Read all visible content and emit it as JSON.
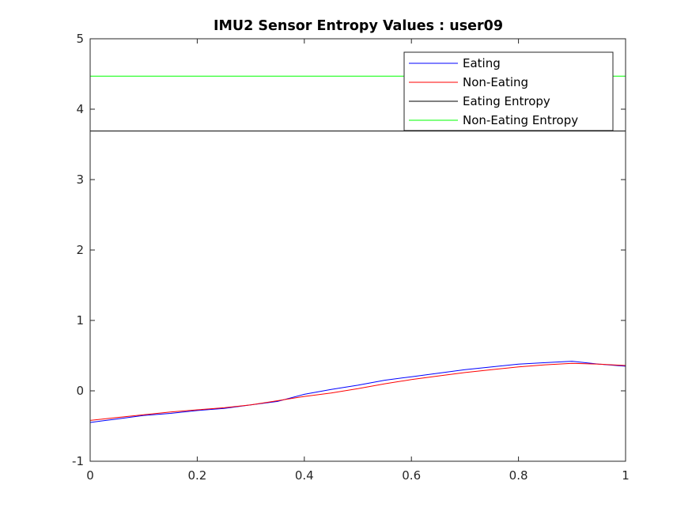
{
  "chart_data": {
    "type": "line",
    "title": "IMU2 Sensor Entropy Values : user09",
    "xlabel": "",
    "ylabel": "",
    "xlim": [
      0,
      1
    ],
    "ylim": [
      -1,
      5
    ],
    "xticks": [
      0,
      0.2,
      0.4,
      0.6,
      0.8,
      1
    ],
    "xtick_labels": [
      "0",
      "0.2",
      "0.4",
      "0.6",
      "0.8",
      "1"
    ],
    "yticks": [
      -1,
      0,
      1,
      2,
      3,
      4,
      5
    ],
    "ytick_labels": [
      "-1",
      "0",
      "1",
      "2",
      "3",
      "4",
      "5"
    ],
    "legend_position": "top-right",
    "grid": false,
    "series": [
      {
        "name": "Eating",
        "color": "#0000ff",
        "x": [
          0,
          0.05,
          0.1,
          0.15,
          0.2,
          0.25,
          0.3,
          0.35,
          0.4,
          0.45,
          0.5,
          0.55,
          0.6,
          0.65,
          0.7,
          0.75,
          0.8,
          0.85,
          0.9,
          0.95,
          1.0
        ],
        "y": [
          -0.45,
          -0.4,
          -0.35,
          -0.32,
          -0.28,
          -0.25,
          -0.2,
          -0.15,
          -0.05,
          0.02,
          0.08,
          0.15,
          0.2,
          0.25,
          0.3,
          0.34,
          0.38,
          0.4,
          0.42,
          0.38,
          0.35
        ]
      },
      {
        "name": "Non-Eating",
        "color": "#ff0000",
        "x": [
          0,
          0.05,
          0.1,
          0.15,
          0.2,
          0.25,
          0.3,
          0.35,
          0.4,
          0.45,
          0.5,
          0.55,
          0.6,
          0.65,
          0.7,
          0.75,
          0.8,
          0.85,
          0.9,
          0.95,
          1.0
        ],
        "y": [
          -0.42,
          -0.38,
          -0.34,
          -0.3,
          -0.27,
          -0.24,
          -0.2,
          -0.14,
          -0.08,
          -0.03,
          0.03,
          0.1,
          0.16,
          0.21,
          0.26,
          0.3,
          0.34,
          0.37,
          0.39,
          0.38,
          0.36
        ]
      },
      {
        "name": "Eating Entropy",
        "color": "#000000",
        "x": [
          0,
          1
        ],
        "y": [
          3.69,
          3.69
        ]
      },
      {
        "name": "Non-Eating Entropy",
        "color": "#00ff00",
        "x": [
          0,
          1
        ],
        "y": [
          4.47,
          4.47
        ]
      }
    ]
  }
}
